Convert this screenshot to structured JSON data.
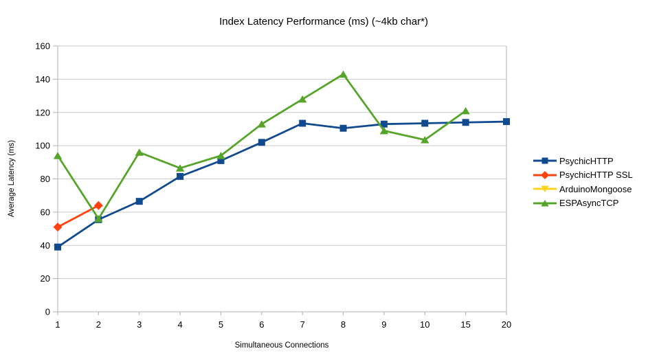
{
  "chart_data": {
    "type": "line",
    "title": "Index Latency Performance (ms) (~4kb char*)",
    "xlabel": "Simultaneous Connections",
    "ylabel": "Average Latency (ms)",
    "ylim": [
      0,
      160
    ],
    "yticks": [
      0,
      20,
      40,
      60,
      80,
      100,
      120,
      140,
      160
    ],
    "categories": [
      "1",
      "2",
      "3",
      "4",
      "5",
      "6",
      "7",
      "8",
      "9",
      "10",
      "15",
      "20"
    ],
    "grid": true,
    "legend_position": "right",
    "colors": {
      "grid": "#c9c9c9",
      "axis": "#b0b0b0",
      "text": "#000000",
      "background": "#ffffff"
    },
    "series": [
      {
        "name": "PsychicHTTP",
        "color": "#124A90",
        "marker": "square",
        "values": [
          39,
          55.5,
          66.5,
          81.5,
          91,
          102,
          113.5,
          110.5,
          113,
          113.5,
          114,
          114.5
        ]
      },
      {
        "name": "PsychicHTTP SSL",
        "color": "#FF420E",
        "marker": "diamond",
        "values": [
          51,
          64,
          null,
          null,
          null,
          null,
          null,
          null,
          null,
          null,
          null,
          null
        ]
      },
      {
        "name": "ArduinoMongoose",
        "color": "#FFD320",
        "marker": "triangle-down",
        "values": [
          null,
          null,
          null,
          null,
          null,
          null,
          null,
          null,
          null,
          null,
          null,
          null
        ]
      },
      {
        "name": "ESPAsyncTCP",
        "color": "#57A42B",
        "marker": "triangle-up",
        "values": [
          94,
          56,
          96,
          86.5,
          94,
          113,
          128,
          143,
          109,
          103.5,
          121,
          null
        ]
      }
    ]
  }
}
